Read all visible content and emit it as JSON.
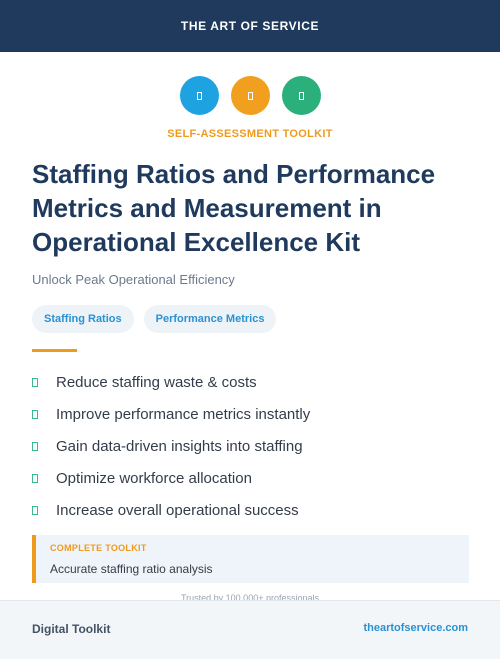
{
  "header": {
    "title": "THE ART OF SERVICE"
  },
  "icons": [
    {
      "name": "blue-badge-icon",
      "color": "#1ea3e0"
    },
    {
      "name": "orange-badge-icon",
      "color": "#f0a01e"
    },
    {
      "name": "green-badge-icon",
      "color": "#2bb07c"
    }
  ],
  "eyebrow": "SELF-ASSESSMENT TOOLKIT",
  "title": "Staffing Ratios and Performance Metrics and Measurement in Operational Excellence Kit",
  "subtitle": "Unlock Peak Operational Efficiency",
  "tags": [
    "Staffing Ratios",
    "Performance Metrics"
  ],
  "features": [
    "Reduce staffing waste & costs",
    "Improve performance metrics instantly",
    "Gain data-driven insights into staffing",
    "Optimize workforce allocation",
    "Increase overall operational success"
  ],
  "callout": {
    "label": "COMPLETE TOOLKIT",
    "text": "Accurate staffing ratio analysis"
  },
  "trusted": "Trusted by 100,000+ professionals",
  "footer": {
    "left": "Digital Toolkit",
    "right": "theartofservice.com"
  },
  "colors": {
    "navy": "#1f3a5c",
    "accent": "#ee9b1d",
    "link": "#2a91d2",
    "check": "#3bb88e"
  }
}
